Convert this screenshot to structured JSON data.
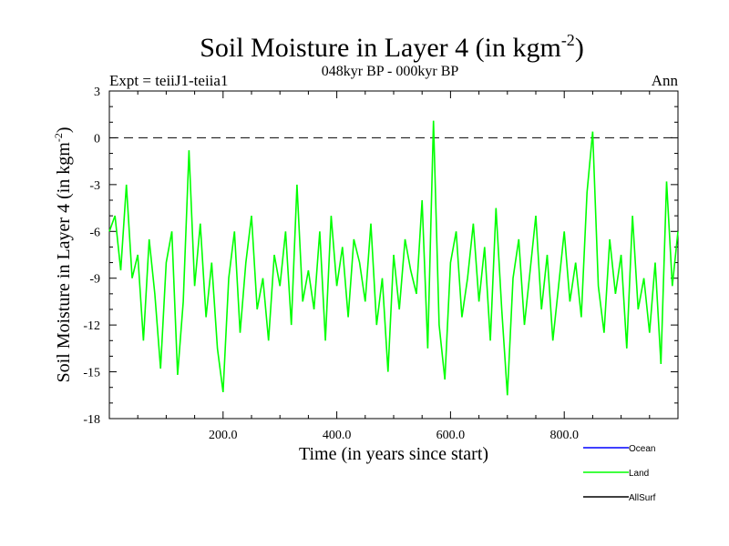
{
  "chart_data": {
    "type": "line",
    "title": "Soil Moisture in Layer 4 (in kgm",
    "title_sup": "-2",
    "title_close": ")",
    "subtitle": "048kyr BP - 000kyr BP",
    "expt_label": "Expt = teiiJ1-teiia1",
    "season_label": "Ann",
    "xlabel": "Time (in years since start)",
    "ylabel": "Soil Moisture in Layer 4 (in kgm",
    "ylabel_sup": "-2",
    "ylabel_close": ")",
    "xlim": [
      0,
      1000
    ],
    "ylim": [
      -18,
      3
    ],
    "xticks": [
      200,
      400,
      600,
      800
    ],
    "xtick_labels": [
      "200.0",
      "400.0",
      "600.0",
      "800.0"
    ],
    "yticks": [
      3,
      0,
      -3,
      -6,
      -9,
      -12,
      -15,
      -18
    ],
    "ytick_labels": [
      "3",
      "0",
      "-3",
      "-6",
      "-9",
      "-12",
      "-15",
      "-18"
    ],
    "reference_line": 0,
    "legend_position": "bottom-right",
    "series": [
      {
        "name": "Ocean",
        "color": "#0000ff",
        "x": [],
        "y": []
      },
      {
        "name": "Land",
        "color": "#00ff00",
        "x": [
          0,
          10,
          20,
          30,
          40,
          50,
          60,
          70,
          80,
          90,
          100,
          110,
          120,
          130,
          140,
          150,
          160,
          170,
          180,
          190,
          200,
          210,
          220,
          230,
          240,
          250,
          260,
          270,
          280,
          290,
          300,
          310,
          320,
          330,
          340,
          350,
          360,
          370,
          380,
          390,
          400,
          410,
          420,
          430,
          440,
          450,
          460,
          470,
          480,
          490,
          500,
          510,
          520,
          530,
          540,
          550,
          560,
          570,
          580,
          590,
          600,
          610,
          620,
          630,
          640,
          650,
          660,
          670,
          680,
          690,
          700,
          710,
          720,
          730,
          740,
          750,
          760,
          770,
          780,
          790,
          800,
          810,
          820,
          830,
          840,
          850,
          860,
          870,
          880,
          890,
          900,
          910,
          920,
          930,
          940,
          950,
          960,
          970,
          980,
          990,
          1000
        ],
        "y": [
          -6.0,
          -5.0,
          -8.5,
          -3.0,
          -9.0,
          -7.5,
          -13.0,
          -6.5,
          -10.0,
          -14.8,
          -8.0,
          -6.0,
          -15.2,
          -10.5,
          -0.8,
          -9.5,
          -5.5,
          -11.5,
          -8.0,
          -13.5,
          -16.3,
          -9.0,
          -6.0,
          -12.5,
          -8.0,
          -5.0,
          -11.0,
          -9.0,
          -13.0,
          -7.5,
          -9.5,
          -6.0,
          -12.0,
          -3.0,
          -10.5,
          -8.5,
          -11.0,
          -6.0,
          -13.0,
          -5.0,
          -9.5,
          -7.0,
          -11.5,
          -6.5,
          -8.0,
          -10.5,
          -5.5,
          -12.0,
          -9.0,
          -15.0,
          -7.5,
          -11.0,
          -6.5,
          -8.5,
          -10.0,
          -4.0,
          -13.5,
          1.1,
          -12.0,
          -15.5,
          -8.0,
          -6.0,
          -11.5,
          -9.0,
          -5.5,
          -10.5,
          -7.0,
          -13.0,
          -4.5,
          -11.0,
          -16.5,
          -9.0,
          -6.5,
          -12.0,
          -8.5,
          -5.0,
          -11.0,
          -7.5,
          -13.0,
          -9.5,
          -6.0,
          -10.5,
          -8.0,
          -11.5,
          -3.5,
          0.4,
          -9.5,
          -12.5,
          -6.5,
          -10.0,
          -7.5,
          -13.5,
          -5.0,
          -11.0,
          -9.0,
          -12.5,
          -8.0,
          -14.5,
          -2.8,
          -9.5,
          -6.0
        ]
      },
      {
        "name": "AllSurf",
        "color": "#000000",
        "x": [],
        "y": []
      }
    ]
  }
}
